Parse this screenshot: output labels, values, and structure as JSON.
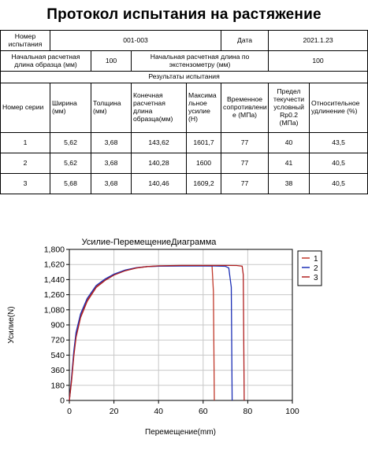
{
  "title": "Протокол испытания на растяжение",
  "header": {
    "series_no_label": "Номер испытания",
    "series_no_value": "001-003",
    "date_label": "Дата",
    "date_value": "2021.1.23",
    "gauge_len_label": "Начальная расчетная длина образца (мм)",
    "gauge_len_value": "100",
    "ext_len_label": "Начальная расчетная длина по экстензометру (мм)",
    "ext_len_value": "100"
  },
  "results_label": "Результаты испытания",
  "columns": [
    "Номер серии",
    "Ширина (мм)",
    "Толщина (мм)",
    "Конечная расчетная длина образца(мм)",
    "Максима льное усилие (Н)",
    "Временное сопротивлени е (МПа)",
    "Предел текучести условный Rp0.2 (МПа)",
    "Относительное удлинение (%)"
  ],
  "rows": [
    [
      "1",
      "5,62",
      "3,68",
      "143,62",
      "1601,7",
      "77",
      "40",
      "43,5"
    ],
    [
      "2",
      "5,62",
      "3,68",
      "140,28",
      "1600",
      "77",
      "41",
      "40,5"
    ],
    [
      "3",
      "5,68",
      "3,68",
      "140,46",
      "1609,2",
      "77",
      "38",
      "40,5"
    ]
  ],
  "chart_data": {
    "type": "line",
    "title": "Усилие-ПеремещениеДиаграмма",
    "xlabel": "Перемещение(mm)",
    "ylabel": "Усилие(N)",
    "xlim": [
      0,
      100
    ],
    "ylim": [
      0,
      1800
    ],
    "x_ticks": [
      "0",
      "20",
      "40",
      "60",
      "80",
      "100"
    ],
    "y_ticks": [
      "0",
      "180",
      "360",
      "540",
      "720",
      "900",
      "1,080",
      "1,260",
      "1,440",
      "1,620",
      "1,800"
    ],
    "grid": true,
    "legend_position": "right",
    "series": [
      {
        "name": "1",
        "color": "#c0392b",
        "x": [
          0,
          1,
          2,
          3,
          5,
          8,
          12,
          16,
          20,
          25,
          30,
          35,
          40,
          45,
          50,
          55,
          60,
          64,
          64.6,
          65
        ],
        "y": [
          0,
          250,
          560,
          780,
          1010,
          1200,
          1360,
          1440,
          1500,
          1550,
          1580,
          1595,
          1600,
          1602,
          1603,
          1603,
          1603,
          1602,
          1300,
          0
        ]
      },
      {
        "name": "2",
        "color": "#1c2fb5",
        "x": [
          0,
          1,
          2,
          3,
          5,
          8,
          12,
          16,
          20,
          25,
          30,
          35,
          40,
          45,
          50,
          55,
          60,
          65,
          70,
          71.5,
          72.6,
          73
        ],
        "y": [
          0,
          270,
          590,
          810,
          1030,
          1215,
          1370,
          1447,
          1505,
          1553,
          1582,
          1596,
          1600,
          1601,
          1602,
          1602,
          1602,
          1602,
          1598,
          1580,
          1350,
          0
        ]
      },
      {
        "name": "3",
        "color": "#b02020",
        "x": [
          0,
          1,
          2,
          3,
          5,
          8,
          12,
          16,
          20,
          25,
          30,
          35,
          40,
          45,
          50,
          55,
          60,
          65,
          70,
          75,
          77.5,
          78,
          78.4
        ],
        "y": [
          0,
          230,
          530,
          750,
          985,
          1180,
          1345,
          1430,
          1493,
          1545,
          1578,
          1596,
          1604,
          1607,
          1609,
          1609,
          1609,
          1609,
          1609,
          1608,
          1600,
          1500,
          0
        ]
      }
    ]
  }
}
